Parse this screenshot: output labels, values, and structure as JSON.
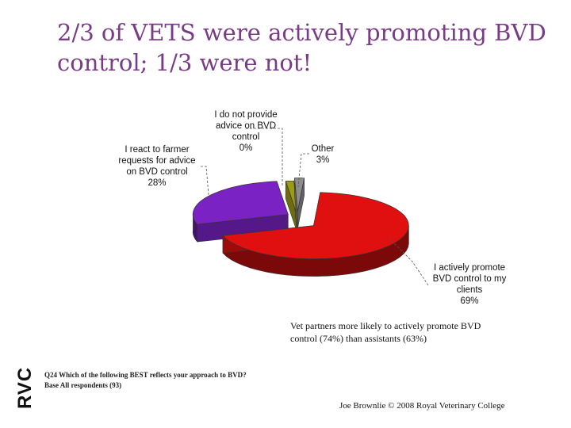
{
  "slide": {
    "title_line1": "2/3 of VETS were actively promoting BVD",
    "title_line2": "control; 1/3 were not!",
    "note": "Vet partners more likely to actively promote BVD control (74%) than assistants (63%)",
    "question_line1": "Q24 Which of the following BEST reflects your approach to BVD?",
    "question_line2": "Base All respondents (93)",
    "footer": "Joe Brownlie © 2008 Royal Veterinary College",
    "logo_text": "RVC"
  },
  "chart_data": {
    "type": "pie",
    "style": "3d-exploded",
    "slices": [
      {
        "label_lines": [
          "I actively promote",
          "BVD control to my",
          "clients"
        ],
        "value_label": "69%",
        "value": 69,
        "color": "#e01010"
      },
      {
        "label_lines": [
          "I react to farmer",
          "requests for advice",
          "on BVD control"
        ],
        "value_label": "28%",
        "value": 28,
        "color": "#7a22c4"
      },
      {
        "label_lines": [
          "I do not provide",
          "advice on BVD",
          "control"
        ],
        "value_label": "0%",
        "value": 0,
        "color": "#6b8e23"
      },
      {
        "label_lines": [
          "Other"
        ],
        "value_label": "3%",
        "value": 3,
        "color": "#8c8c8c"
      }
    ],
    "extra_slice_olive_color": "#9b9b15",
    "legend": "none"
  }
}
